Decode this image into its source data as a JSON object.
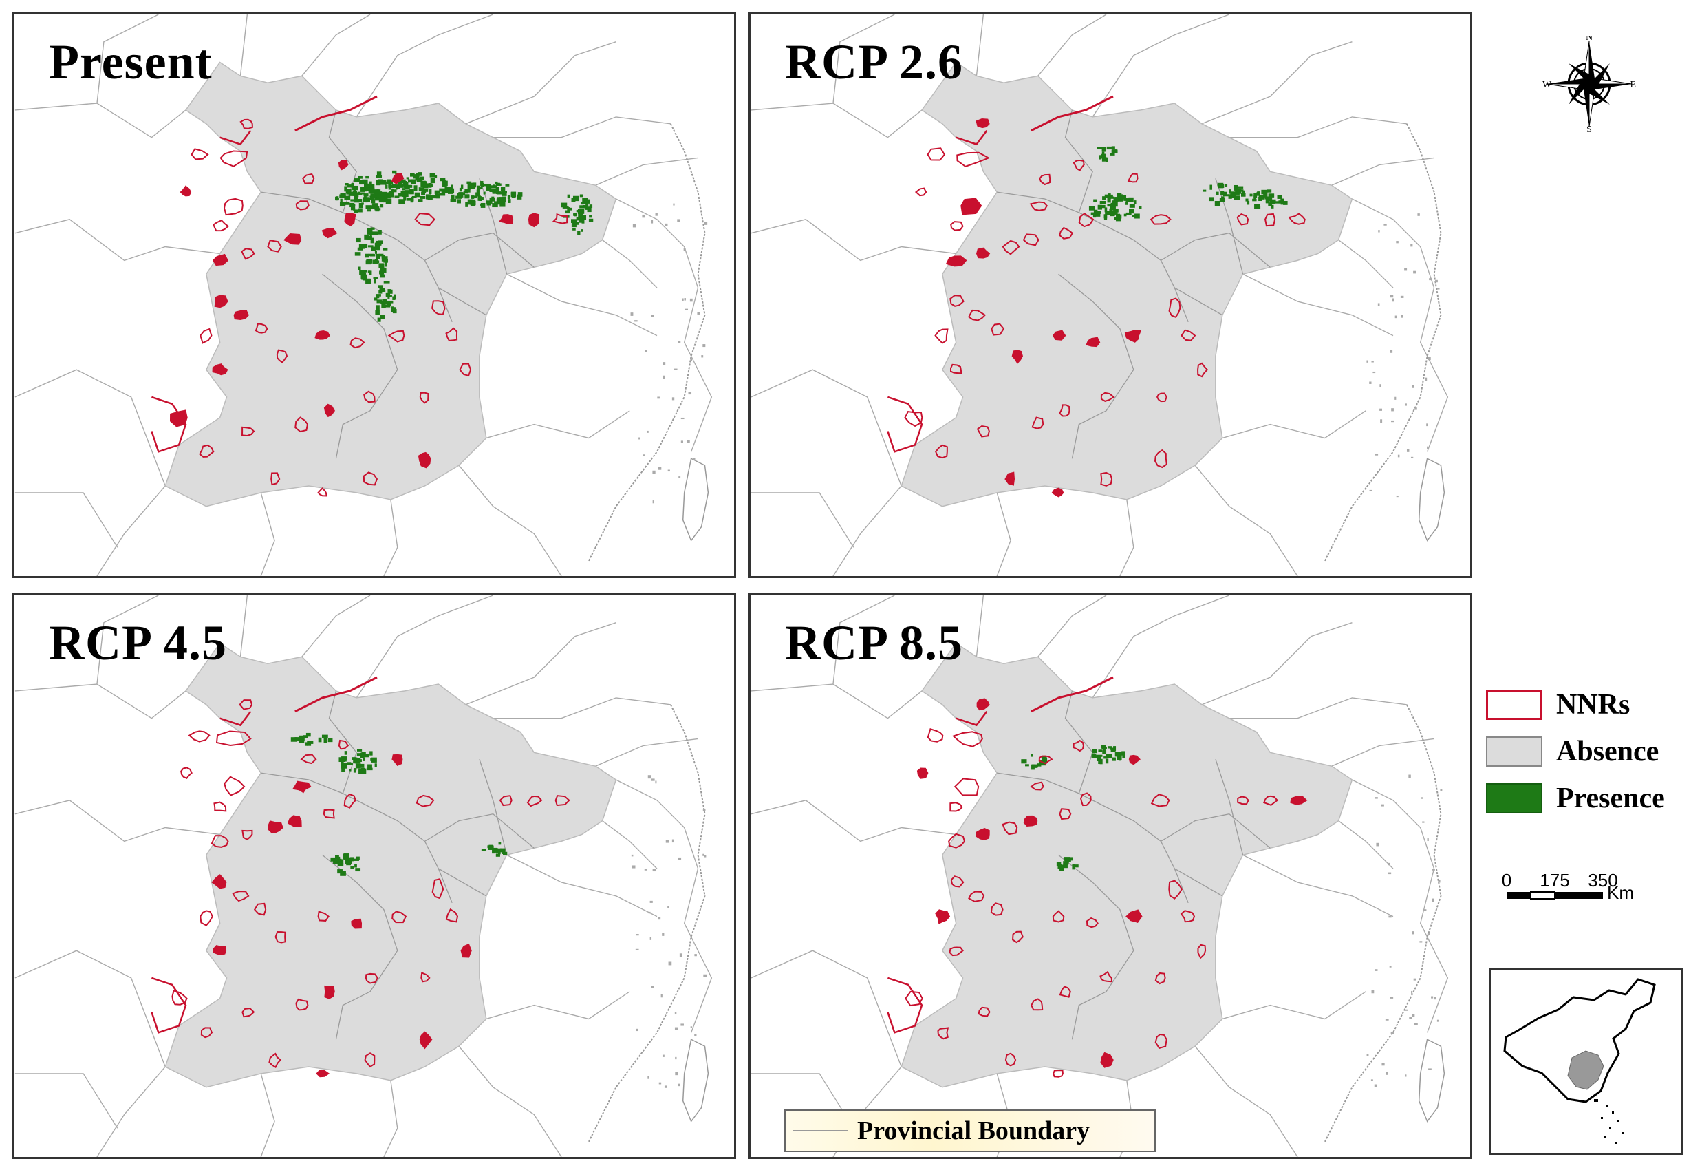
{
  "panels": [
    {
      "title": "Present"
    },
    {
      "title": "RCP 2.6"
    },
    {
      "title": "RCP 4.5"
    },
    {
      "title": "RCP 8.5"
    }
  ],
  "legend": {
    "items": [
      {
        "label": "NNRs",
        "color": "#c8102e",
        "fill": "#ffffff"
      },
      {
        "label": "Absence",
        "color": "#888888",
        "fill": "#dcdcdc"
      },
      {
        "label": "Presence",
        "color": "#1e7a16",
        "fill": "#1e7a16"
      }
    ]
  },
  "compass": {
    "n": "N",
    "s": "S",
    "e": "E",
    "w": "W"
  },
  "scale_bar": {
    "ticks": [
      "0",
      "175",
      "350"
    ],
    "unit": "Km"
  },
  "boundary_legend": {
    "label": "Provincial Boundary"
  },
  "colors": {
    "region": "#dcdcdc",
    "nnr": "#c8102e",
    "presence": "#1e7a16",
    "boundary": "#aaaaaa"
  }
}
